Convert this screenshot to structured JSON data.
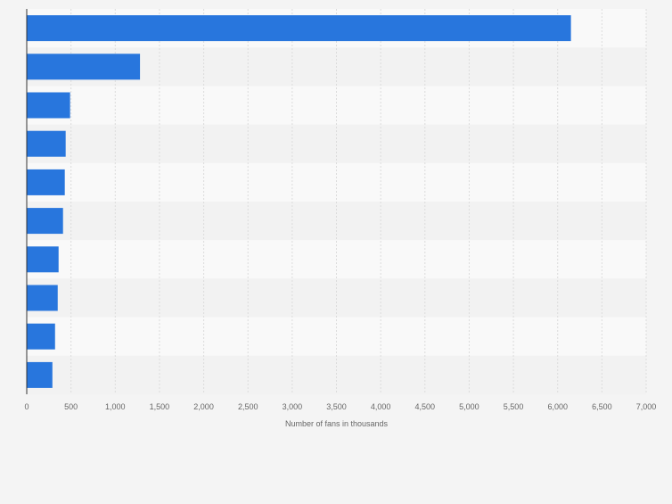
{
  "chart_data": {
    "type": "bar",
    "orientation": "horizontal",
    "categories": [
      "",
      "",
      "",
      "",
      "",
      "",
      "",
      "",
      "",
      ""
    ],
    "values": [
      6150,
      1280,
      490,
      440,
      430,
      410,
      360,
      350,
      320,
      290
    ],
    "title": "",
    "xlabel": "Number of fans in thousands",
    "ylabel": "",
    "xlim": [
      0,
      7000
    ],
    "x_ticks": [
      0,
      500,
      1000,
      1500,
      2000,
      2500,
      3000,
      3500,
      4000,
      4500,
      5000,
      5500,
      6000,
      6500,
      7000
    ],
    "x_tick_labels": [
      "0",
      "500",
      "1,000",
      "1,500",
      "2,000",
      "2,500",
      "3,000",
      "3,500",
      "4,000",
      "4,500",
      "5,000",
      "5,500",
      "6,000",
      "6,500",
      "7,000"
    ],
    "grid": true,
    "legend": "none",
    "colors": {
      "bar": "#2876dd",
      "band_light": "#f9f9f9",
      "band_dark": "#f2f2f2",
      "grid": "#dcdcdc",
      "axis": "#333333",
      "text": "#666666",
      "background": "#f4f4f4"
    }
  }
}
